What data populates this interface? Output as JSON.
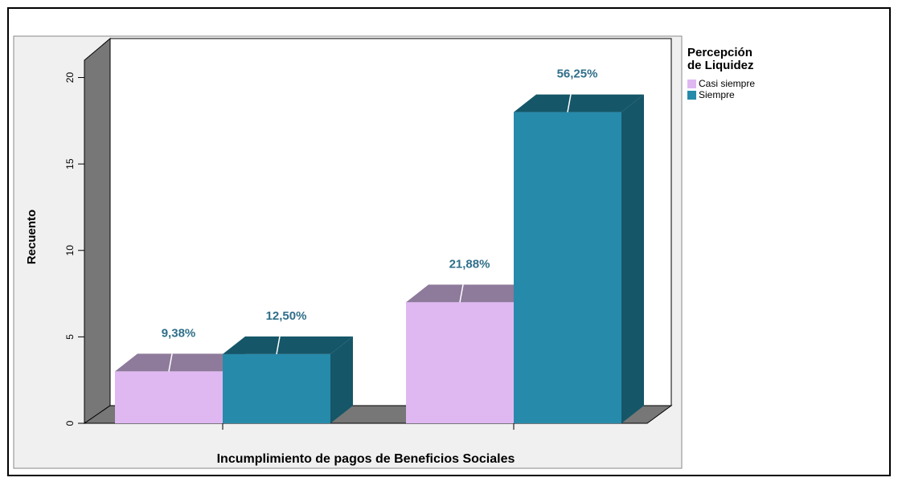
{
  "chart_data": {
    "type": "bar3d",
    "x_label": "Incumplimiento de pagos de Beneficios Sociales",
    "y_label": "Recuento",
    "categories": [
      null,
      null
    ],
    "series": [
      {
        "name": "Casi siempre",
        "color": "#dfb8f2",
        "top_color": "#8e7a9b",
        "values": [
          3,
          7
        ],
        "percent_labels": [
          "9,38%",
          "21,88%"
        ]
      },
      {
        "name": "Siempre",
        "color": "#268aab",
        "top_color": "#155668",
        "values": [
          4,
          18
        ],
        "percent_labels": [
          "12,50%",
          "56,25%"
        ]
      }
    ],
    "ylim": [
      0,
      21
    ],
    "yticks": [
      0,
      5,
      10,
      15,
      20
    ],
    "legend_title": [
      "Percepción",
      "de Liquidez"
    ],
    "legend": "right"
  }
}
